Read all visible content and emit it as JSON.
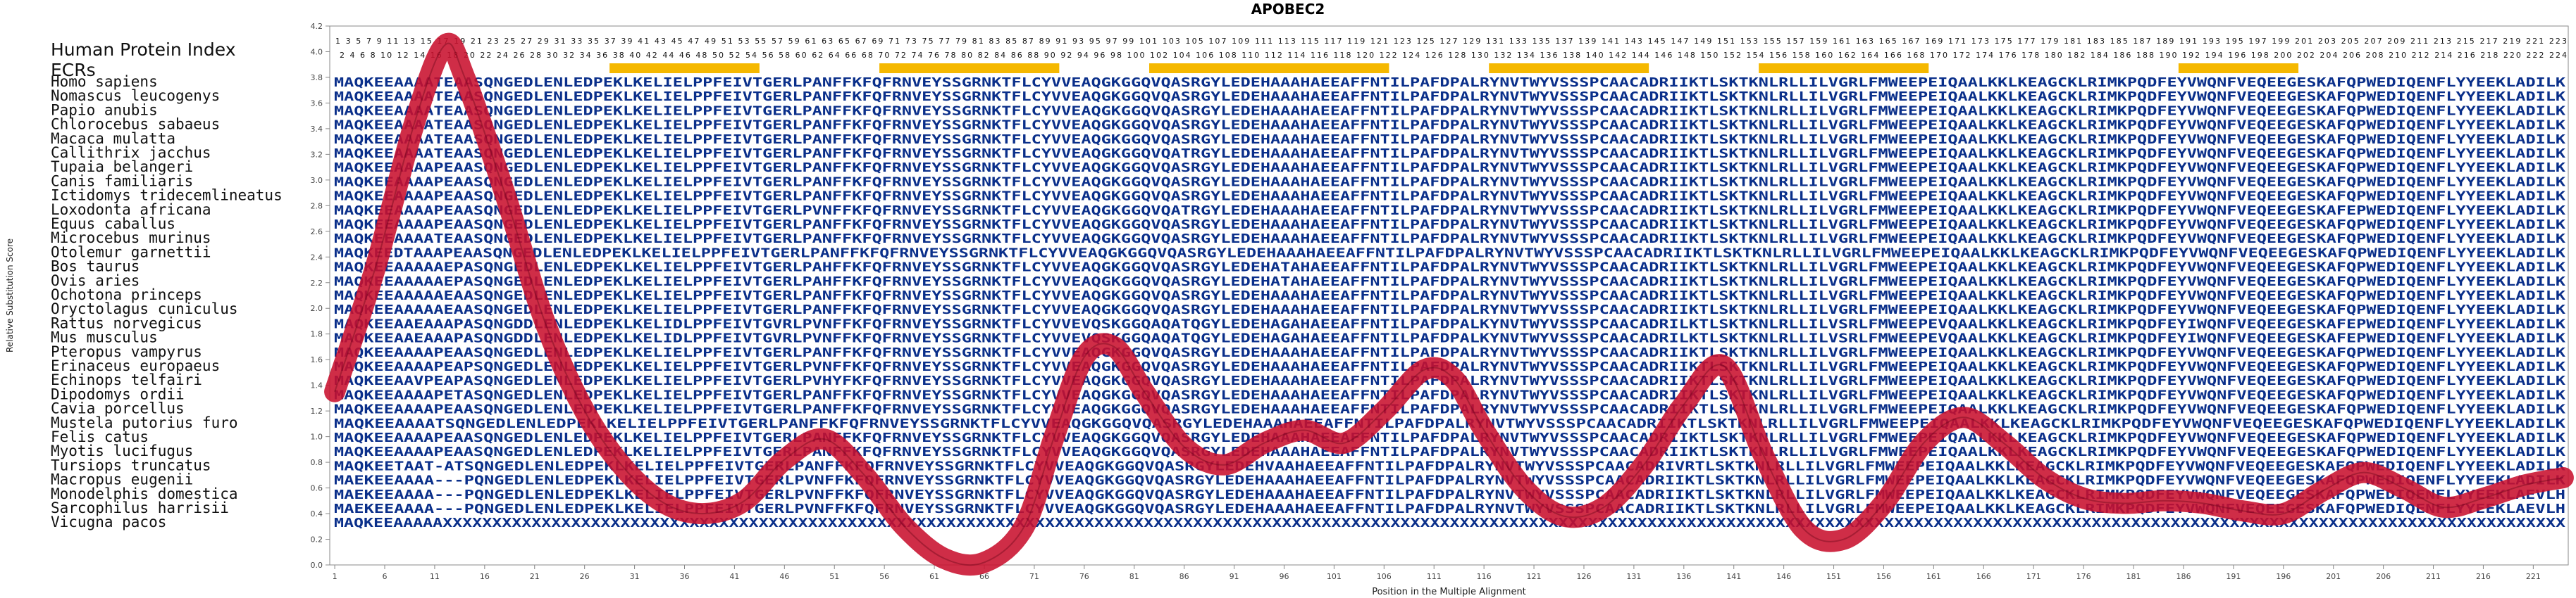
{
  "chart_data": {
    "type": "line",
    "title": "APOBEC2",
    "xlabel": "Position in the Multiple Alignment",
    "ylabel": "Relative Substitution Score",
    "ylim": [
      0.0,
      4.2
    ],
    "xlim": [
      1,
      224
    ],
    "yticks": [
      "0.0",
      "0.2",
      "0.4",
      "0.6",
      "0.8",
      "1.0",
      "1.2",
      "1.4",
      "1.6",
      "1.8",
      "2.0",
      "2.2",
      "2.4",
      "2.6",
      "2.8",
      "3.0",
      "3.2",
      "3.4",
      "3.6",
      "3.8",
      "4.0",
      "4.2"
    ],
    "xticks": [
      "1",
      "6",
      "11",
      "16",
      "21",
      "26",
      "31",
      "36",
      "41",
      "46",
      "51",
      "56",
      "61",
      "66",
      "71",
      "76",
      "81",
      "86",
      "91",
      "96",
      "101",
      "106",
      "111",
      "116",
      "121",
      "126",
      "131",
      "136",
      "141",
      "146",
      "151",
      "156",
      "161",
      "166",
      "171",
      "176",
      "181",
      "186",
      "191",
      "196",
      "201",
      "206",
      "211",
      "216",
      "221"
    ],
    "human_index_label": "Human Protein Index",
    "human_index_odd": "1 3 5 7 9 11 13 15 17 19 21 23 25 27 29 31 33 35 37 39 41 43 45 47 49 51 53 55 57 59 61 63 65 67 69 71 73 75 77 79 81 83 85 87 89 91 93 95 97 99 101 103 105 107 109 111 113 115 117 119 121 123 125 127 129 131 133 135 137 139 141 143 145 147 149 151 153 155 157 159 161 163 165 167 169 171 173 175 177 179 181 183 185 187 189 191 193 195 197 199 201 203 205 207 209 211 213 215 217 219 221 223",
    "human_index_even": "2 4 6 8 10 12 14 16 18 20 22 24 26 28 30 32 34 36 38 40 42 44 46 48 50 52 54 56 58 60 62 64 66 68 70 72 74 76 78 80 82 84 86 88 90 92 94 96 98 100 102 104 106 108 110 112 114 116 118 120 122 124 126 128 130 132 134 136 138 140 142 144 146 148 150 152 154 156 158 160 162 164 166 168 170 172 174 176 178 180 182 184 186 188 190 192 194 196 198 200 202 204 206 208 210 212 214 216 218 220 222 224",
    "ecr_label": "ECRs",
    "ecr_regions": [
      [
        29,
        43
      ],
      [
        56,
        73
      ],
      [
        83,
        106
      ],
      [
        117,
        132
      ],
      [
        144,
        160
      ],
      [
        186,
        197
      ]
    ],
    "species": [
      {
        "name": "Homo sapiens",
        "seq": "MAQKEEAAAATEAASQNGEDLENLEDPEKLKELIELPPFEIVTGERLPANFFKFQFRNVEYSSGRNKTFLCYVVEAQGKGGQVQASRGYLEDEHAAAHAEEAFFNTILPAFDPALRYNVTWYVSSSPCAACADRIIKTLSKTKNLRLLILVGRLFMWEEPEIQAALKKLKEAGCKLRIMKPQDFEYVWQNFVEQEEGESKAFQPWEDIQENFLYYEEKLADILK"
      },
      {
        "name": "Nomascus leucogenys",
        "seq": "MAQKEEAAAATEAASQNGEDLENLEDPEKLKELIELPPFEIVTGERLPANFFKFQFRNVEYSSGRNKTFLCYVVEAQGKGGQVQASRGYLEDEHAAAHAEEAFFNTILPAFDPALRYNVTWYVSSSPCAACADRIIKTLSKTKNLRLLILVGRLFMWEEPEIQAALKKLKEAGCKLRIMKPQDFEYVWQNFVEQEEGESKAFQPWEDIQENFLYYEEKLADILK"
      },
      {
        "name": "Papio anubis",
        "seq": "MAQKEEAAAATEAASQNGEDLENLEDPEKLKELIELPPFEIVTGERLPANFFKFQFRNVEYSSGRNKTFLCYVVEAQGKGGQVQASRGYLEDEHAAAHAEEAFFNTILPAFDPALRYNVTWYVSSSPCAACADRIIKTLSKTKNLRLLILVGRLFMWEEPEIQAALKKLKEAGCKLRIMKPQDFEYVWQNFVEQEEGESKAFQPWEDIQENFLYYEEKLADILK"
      },
      {
        "name": "Chlorocebus sabaeus",
        "seq": "MAQKEEAAAATEAASQNGEDLENLEDPEKLKELIELPPFEIVTGERLPANFFKFQFRNVEYSSGRNKTFLCYVVEAQGKGGQVQASRGYLEDEHAAAHAEEAFFNTILPAFDPALRYNVTWYVSSSPCAACADRIIKTLSKTKNLRLLILVGRLFMWEEPEIQAALKKLKEAGCKLRIMKPQDFEYVWQNFVEQEEGESKAFQPWEDIQENFLYYEEKLADILK"
      },
      {
        "name": "Macaca mulatta",
        "seq": "MAQKEEAAAATEAASQNGEDLENLEDPEKLKELIELPPFEIVTGERLPANFFKFQFRNVEYSSGRNKTFLCYVVEAQGKGGQVQASRGYLEDEHAAAHAEEAFFNTILPAFDPALRYNVTWYVSSSPCAACADRIIKTLSKTKNLRLLILVGRLFMWEEPEIQAALKKLKEAGCKLRIMKPQDFEYVWQNFVEQEEGESKAFQPWEDIQENFLYYEEKLADILK"
      },
      {
        "name": "Callithrix jacchus",
        "seq": "MAQKEEAAAATEAASQNGEDLENLEDPEKLKELIELPPFEIVTGERLPANFFKFQFRNVEYSSGRNKTFLCYVVEAQGKGGQVQATRGYLEDEHAAAHAEEAFFNTILPAFDPALRYNVTWYVSSSPCAACADRIIKTLSKTKNLRLLILVGRLFMWEEPEIQAALKKLKEAGCKLRIMKPQDFEYVWQNFVEQEEGESKAFQPWEDIQENFLYYEEKLADILK"
      },
      {
        "name": "Tupaia belangeri",
        "seq": "MAQKEEAAAAPEAASQNGEDLENLEDPEKLKELIELPPFEIVTGERLPANFFKFQFRNVEYSSGRNKTFLCYVVEAQGKGGQVQASRGYLEDEHAAAHAEEAFFNTILPAFDPALRYNVTWYVSSSPCAACADRIIKTLSKTKNLRLLILVGRLFMWEEPEIQAALKKLKEAGCKLRIMKPQDFEYVWQNFVEQEEGESKAFQPWEDIQENFLYYEEKLADILK"
      },
      {
        "name": "Canis familiaris",
        "seq": "MAQKEEAAAAPEAASQNGEDLENLEDPEKLKELIELPPFEIVTGERLPANFFKFQFRNVEYSSGRNKTFLCYVVEAQGKGGQVQASRGYLEDEHAAAHAEEAFFNTILPAFDPALRYNVTWYVSSSPCAACADRIIKTLSKTKNLRLLILVGRLFMWEEPEIQAALKKLKEAGCKLRIMKPQDFEYVWQNFVEQEEGESKAFQPWEDIQENFLYYEEKLADILK"
      },
      {
        "name": "Ictidomys tridecemlineatus",
        "seq": "MAQKEEAAAAPEAASQNGEDLENLEDPEKLKELIELPPFEIVTGERLPANFFKFQFRNVEYSSGRNKTFLCYVVEAQGKGGQVQASRGYLEDEHAAAHAEEAFFNTILPAFDPALRYNVTWYVSSSPCAACADRIIKTLSKTKNLRLLILVGRLFMWEEPEIQAALKKLKEAGCKLRIMKPQDFEYVWQNFVEQEEGESKAFQPWEDIQENFLYYEEKLADILK"
      },
      {
        "name": "Loxodonta africana",
        "seq": "MAQKEEAAAAPEAASQNGEDLENLEDPEKLKELIELPPFEIVTGERLPVNFFKFQFRNVEYSSGRNKTFLCYVVEAQGKGGQVQATRGYLEDEHAAAHAEEAFFNTILPAFDPALRYNVTWYVSSSPCAACADRIIKTLSKTKNLRLLILVGRLFMWEEPEIQAALKKLKEAGCKLRIMKPQDFEYVWQNFVEQEEGESKAFEPWEDIQENFLYYEEKLADILK"
      },
      {
        "name": "Equus caballus",
        "seq": "MAQKEEAAAAPEAASQNGEDLENLEDPEKLKELIELPPFEIVTGERLPANFFKFQFRNVEYSSGRNKTFLCYVVEAQGKGGQVQASRGYLEDEHAAAHAEEAFFNTILPAFDPALRYNVTWYVSSSPCAACADRIIKTLSKTKNLRLLILVGRLFMWEEPEIQAALKKLKEAGCKLRIMKPQDFEYVWQNFVEQEEGESKAFQPWEDIQENFLYYEEKLADILK"
      },
      {
        "name": "Microcebus murinus",
        "seq": "MAQKEEAAAATEAASQNGEDLENLEDPEKLKELIELPPFEIVTGERLPANFFKFQFRNVEYSSGRNKTFLCYVVEAQGKGGQVQASRGYLEDEHAAAHAEEAFFNTILPAFDPALRYNVTWYVSSSPCAACADRIIKTLSKTKNLRLLILVGRLFMWEEPEIQAALKKLKEAGCKLRIMKPQDFEYVWQNFVEQEEGESKAFQPWEDIQENFLYYEEKLADILK"
      },
      {
        "name": "Otolemur garnettii",
        "seq": "MAQKEEDTAAAPEAASQNGEDLENLEDPEKLKELIELPPFEIVTGERLPANFFKFQFRNVEYSSGRNKTFLCYVVEAQGKGGQVQASRGYLEDEHAAAHAEEAFFNTILPAFDPALRYNVTWYVSSSPCAACADRIIKTLSKTKNLRLLILVGRLFMWEEPEIQAALKKLKEAGCKLRIMKPQDFEYVWQNFVEQEEGESKAFQPWEDIQENFLYYEEKLADILK"
      },
      {
        "name": "Bos taurus",
        "seq": "MAQKEEAAAAAEPASQNGEDLENLEDPEKLKELIELPPFEIVTGERLPAHFFKFQFRNVEYSSGRNKTFLCYVVEAQGKGGQVQASRGYLEDEHATAHAEEAFFNTILPAFDPALRYNVTWYVSSSPCAACADRIIKTLSKTKNLRLLILVGRLFMWEEPEIQAALKKLKEAGCKLRIMKPQDFEYVWQNFVEQEEGESKAFQPWEDIQENFLYYEEKLADILK"
      },
      {
        "name": "Ovis aries",
        "seq": "MAQKEEAAAAAEPASQNGEDLENLEDPEKLKELIELPPFEIVTGERLPAHFFKFQFRNVEYSSGRNKTFLCYVVEAQGKGGQVQASRGYLEDEHATAHAEEAFFNTILPAFDPALRYNVTWYVSSSPCAACADRIIKTLSKTKNLRLLILVGRLFMWEEPEIQAALKKLKEAGCKLRIMKPQDFEYVWQNFVEQEEGESKAFQPWEDIQENFLYYEEKLADILK"
      },
      {
        "name": "Ochotona princeps",
        "seq": "MAQKEEAAAAAEAASQNGEDLENLEDPEKLKELIELPPFEIVTGERLPANFFKFQFRNVEYSSGRNKTFLCYVVEAQGKGGQVQASRGYLEDEHAAAHAEEAFFNTILPAFDPALRYNVTWYVSSSPCAACADRIIKTLSKTKNLRLLILVGRLFMWEEPEIQAALKKLKEAGCKLRIMKPQDFEYVWQNFVEQEEGESKAFQPWEDIQENFLYYEEKLADILK"
      },
      {
        "name": "Oryctolagus cuniculus",
        "seq": "MAQKEEAAAAAEAASQNGEDLENLEDPEKLKELIELPPFEIVTGERLPANFFKFQFRNVEYSSGRNKTFLCYVVEAQGKGGQVQASRGYLEDEHAAAHAEEAFFNTILPAFDPALRYNVTWYVSSSPCAACADRIIKTLSKTKNLRLLILVGRLFMWEEPEIQAALKKLKEAGCKLRIMKPQDFEYVWQNFVEQEEGESKAFQPWEDIQENFLYYEEKLADILK"
      },
      {
        "name": "Rattus norvegicus",
        "seq": "MAQKEEAAEAAAPASQNGDDLENLEDPEKLKELIDLPPFEIVTGVRLPVNFFKFQFRNVEYSSGRNKTFLCYVVEVQSKGGQAQATQGYLEDEHAGAHAEEAFFNTILPAFDPALKYNVTWYVSSSPCAACADRILKTLSKTKNLRLLILVSRLFMWEEPEVQAALKKLKEAGCKLRIMKPQDFEYIWQNFVEQEEGESKAFEPWEDIQENFLYYEEKLADILK"
      },
      {
        "name": "Mus musculus",
        "seq": "MAQKEEAAEAAAPASQNGDDLENLEDPEKLKELIDLPPFEIVTGVRLPVNFFKFQFRNVEYSSGRNKTFLCYVVEVQSKGGQAQATQGYLEDEHAGAHAEEAFFNTILPAFDPALKYNVTWYVSSSPCAACADRILKTLSKTKNLRLLILVSRLFMWEEPEVQAALKKLKEAGCKLRIMKPQDFEYIWQNFVEQEEGESKAFEPWEDIQENFLYYEEKLADILK"
      },
      {
        "name": "Pteropus vampyrus",
        "seq": "MAQKEEAAAAPEAASQNGEDLENLEDPEKLKELIELPPFEIVTGERLPANFFKFQFRNVEYSSGRNKTFLCYVVEAQGKGGQVQASRGYLEDEHAAAHAEEAFFNTILPAFDPALRYNVTWYVSSSPCAACADRIIKTLSKTKNLRLLILVGRLFMWEEPEIQAALKKLKEAGCKLRIMKPQDFEYVWQNFVEQEEGESKAFQPWEDIQENFLYYEEKLADILK"
      },
      {
        "name": "Erinaceus europaeus",
        "seq": "MAQKEEAAAAPEAPSQNGEDLENLEDPEKLKELIELPPFEIVTGERLPVNFFKFQFRNVEYSSGRNKTFLCYVVEAQGKGGQVQASRGYLEDEHAAAHAEEAFFNTILPAFDPALRYNVTWYVSSSPCAACADRIIKTLSKTKNLRLLILVGRLFMWEEPEIQAALKKLKEAGCKLRIMKPQDFEYVWQNFVEQEEGESKAFQPWEDIQENFLYYEEKLADILK"
      },
      {
        "name": "Echinops telfairi",
        "seq": "MAQKEEAAVPEAPASQNGEDLENLEDPEKLKELIELPPFEIVTGERLPVHYFKFQFRNVEYSSGRNKTFLCYVVEAQGKGGQVQASRGYLEDEHAAAHAEEAFFNTILPAFDPALRYNVTWYVSSSPCAACADRIIKTLSKTKNLRLLILVGRLFMWEEPEIQAALKKLKEAGCKLRIMKPQDFEYVWQNFVEQEEGESKAFQPWEDIQENFLYYEEKLADILK"
      },
      {
        "name": "Dipodomys ordii",
        "seq": "MAQKEEAAAAPETASQNGEDLENLEDPEKLKELIELPPFEIVTGERLPANFFKFQFRNVEYSSGRNKTFLCYVVEAQGKGGQVQASRGYLEDEHAAAHAEEAFFNTILPAFDPALRYNVTWYVSSSPCAACADRIIKTLSKTKNLRLLILVGRLFMWEEPEIQAALKKLKEAGCKLRIMKPQDFEYVWQNFVEQEEGESKAFQPWEDIQENFLYYEEKLADILK"
      },
      {
        "name": "Cavia porcellus",
        "seq": "MAQKEEAAAAPEAASQNGEDLENLEDPEKLKELIELPPFEIVTGERLPANFFKFQFRNVEYSSGRNKTFLCYVVEAQGKGGQVQASRGYLEDEHAAAHAEEAFFNTILPAFDPALRYNVTWYVSSSPCAACADRIIKTLSKTKNLRLLILVGRLFMWEEPEIQAALKKLKEAGCKLRIMKPQDFEYVWQNFVEQEEGESKAFQPWEDIQENFLYYEEKLADILK"
      },
      {
        "name": "Mustela putorius furo",
        "seq": "MAQKEEAAAATSQNGEDLENLEDPEKLKELIELPPFEIVTGERLPANFFKFQFRNVEYSSGRNKTFLCYVVEAQGKGGQVQASRGYLEDEHAAAHAEEAFFNTILPAFDPALRYNVTWYVSSSPCAACADRIIKTLSKTKNLRLLILVGRLFMWEEPEIQAALKKLKEAGCKLRIMKPQDFEYVWQNFVEQEEGESKAFQPWEDIQENFLYYEEKLADILK"
      },
      {
        "name": "Felis catus",
        "seq": "MAQKEEAAAAPEAASQNGEDLENLEDPEKLKELIELPPFEIVTGERLPANFFKFQFRNVEYSSGRNKTFLCYVVEAQGKGGQVQASRGYLEDEHAAAHAEEAFFNTILPAFDPALRYNVTWYVSSSPCAACADRIIKTLSKTKNLRLLILVGRLFMWEEPEIQAALKKLKEAGCKLRIMKPQDFEYVWQNFVEQEEGESKAFQPWEDIQENFLYYEEKLADILK"
      },
      {
        "name": "Myotis lucifugus",
        "seq": "MAQKEEAAAAPEAASQNGEDLENLEDPEKLKELIELPPFEIVTGERLPANFFKFQFRNVEYSSGRNKTFLCYVVEAQGKGGQVQASRGYLEDEHAAAHAEEAFFNTILPAFDPALRYNVTWYVSSSPCAACADRIIKTLSKTKNLRLLILVGRLFMWEEPEIQAALKKLKEAGCKLRIMKPQDFEYVWQNFVEQEEGESKAFQPWEDIQENFLYYEEKLADILK"
      },
      {
        "name": "Tursiops truncatus",
        "seq": "MAQKEETAAT-ATSQNGEDLENLEDPEKLKELIELPPFEIVTGERLPANFFKFQFRNVEYSSGRNKTFLCYVVEAQGKGGQVQASRGYLEDEHVAAHAEEAFFNTILPAFDPALRYNVTWYVSSSPCAACADRIVRTLSKTKNLRLLILVGRLFMWEEPEIQAALKKLKEAGCKLRIMKPQDFEYVWQNFVEQEEGESKAFQPWEDIQENFLYYEEKLADILK"
      },
      {
        "name": "Macropus eugenii",
        "seq": "MAEKEEAAAA---PQNGEDLENLEDPEKLKELIELPPFEIVTGERLPVNFFKFQFRNVEYSSGRNKTFLCYVVEAQGKGGQVQASRGYLEDEHAAAHAEEAFFNTILPAFDPALRYNVTWYVSSSPCAACADRIIKTLSKTKNLRLLILVGRLFMWEEPEIQAALKKLKEAGCKLRIMKPQDFEYVWQNFVEQEEGESKAFQPWEDIQENFLYYEEKLADILK"
      },
      {
        "name": "Monodelphis domestica",
        "seq": "MAEKEEAAAA---PQNGEDLENLEDPEKLKELIELPPFEIVTGERLPVNFFKFQFRNVEYSSGRNKTFLCYVVEAQGKGGQVQASRGYLEDEHAAAHAEEAFFNTILPAFDPALRYNVTWYVSSSPCAACADRIIKTLSKTKNLRLLILVGRLFMWEEPEIQAALKKLKEAGCKLRIMKPQDFEYVWQNFVEQEEGESKAFQPWEDIQENFLYYEEKLAEVLH"
      },
      {
        "name": "Sarcophilus harrisii",
        "seq": "MAEKEEAAAA---PQNGEDLENLEDPEKLKELIELPPFEIVTGERLPVNFFKFQFRNVEYSSGRNKTFLCYVVEAQGKGGQVQASRGYLEDEHAAAHAEEAFFNTILPAFDPALRYNVTWYVSSSPCAACADRIIKTLSKTKNLRLLILVGRLFMWEEPEIQAALKKLKEAGCKLRIMKPQDFEYVWQNFVEQEEGESKAFQPWEDIQENFLYYEEKLAEVLH"
      },
      {
        "name": "Vicugna pacos",
        "seq": "MAQKEEAAAAAXXXXXXXXXXXXXXXXXXXXXXXXXXXXXXXXXXXXXXXXXXXXXXXXXXXXXXXXXXXXXXXXXXXXXXXXXXXXXXXXXXXXXXXXXXXXXXXXXXXXXXXXXXXXXXXXXXXXXXXXXXXXXXXXXXXXXXXXXXXXXXXXXXXXXXXXXXXXXXXXXXXXXXXXXXXXXXXXXXXXXXXXXXXXXXXXXXXXXXXXXXXXXXXXXXXXXXX"
      }
    ],
    "series": [
      {
        "x": [
          1,
          5,
          9,
          12,
          14,
          18,
          22,
          26,
          30,
          34,
          38,
          42,
          46,
          50,
          54,
          58,
          62,
          66,
          70,
          73,
          76,
          79,
          82,
          86,
          90,
          94,
          98,
          102,
          106,
          110,
          113,
          116,
          120,
          124,
          128,
          132,
          136,
          140,
          144,
          148,
          152,
          156,
          160,
          164,
          168,
          172,
          176,
          180,
          184,
          188,
          192,
          196,
          200,
          204,
          208,
          212,
          216,
          220,
          224
        ],
        "values": [
          1.35,
          2.3,
          3.45,
          4.05,
          3.8,
          2.9,
          1.9,
          1.2,
          0.75,
          0.48,
          0.4,
          0.5,
          0.82,
          0.98,
          0.7,
          0.3,
          0.05,
          0.02,
          0.3,
          1.0,
          1.62,
          1.7,
          1.35,
          0.92,
          0.78,
          0.95,
          1.05,
          0.95,
          1.2,
          1.52,
          1.45,
          1.05,
          0.6,
          0.38,
          0.45,
          0.78,
          1.25,
          1.55,
          0.85,
          0.28,
          0.2,
          0.48,
          0.95,
          1.15,
          0.95,
          0.68,
          0.52,
          0.48,
          0.5,
          0.48,
          0.42,
          0.4,
          0.58,
          0.72,
          0.6,
          0.45,
          0.52,
          0.62,
          0.68
        ]
      }
    ],
    "colors": {
      "line": "#c8102e",
      "conserved_residue": "#0a2f8a",
      "variable_residue": "#7c7c7c",
      "ecr": "#f5b800"
    }
  }
}
